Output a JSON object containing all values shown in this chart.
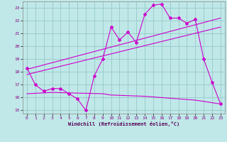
{
  "bg_color": "#c0e8e8",
  "grid_color": "#96c8c8",
  "line_color": "#cc00cc",
  "xlabel": "Windchill (Refroidissement éolien,°C)",
  "xlim": [
    -0.5,
    23.5
  ],
  "ylim": [
    14.75,
    23.5
  ],
  "yticks": [
    15,
    16,
    17,
    18,
    19,
    20,
    21,
    22,
    23
  ],
  "xticks": [
    0,
    1,
    2,
    3,
    4,
    5,
    6,
    7,
    8,
    9,
    10,
    11,
    12,
    13,
    14,
    15,
    16,
    17,
    18,
    19,
    20,
    21,
    22,
    23
  ],
  "series1_x": [
    0,
    1,
    2,
    3,
    4,
    5,
    6,
    7,
    8,
    9,
    10,
    11,
    12,
    13,
    14,
    15,
    16,
    17,
    18,
    19,
    20,
    21,
    22,
    23
  ],
  "series1_y": [
    18.3,
    17.0,
    16.5,
    16.7,
    16.7,
    16.3,
    15.9,
    15.0,
    17.7,
    19.0,
    21.5,
    20.5,
    21.1,
    20.3,
    22.5,
    23.2,
    23.3,
    22.2,
    22.2,
    21.8,
    22.1,
    19.0,
    17.2,
    15.5
  ],
  "trend1_x": [
    0,
    23
  ],
  "trend1_y": [
    17.8,
    21.5
  ],
  "trend2_x": [
    0,
    23
  ],
  "trend2_y": [
    18.2,
    22.2
  ],
  "flat_x": [
    0,
    3,
    9,
    10,
    14,
    16,
    18,
    20,
    22,
    23
  ],
  "flat_y": [
    16.3,
    16.4,
    16.3,
    16.2,
    16.1,
    16.0,
    15.9,
    15.8,
    15.6,
    15.5
  ]
}
